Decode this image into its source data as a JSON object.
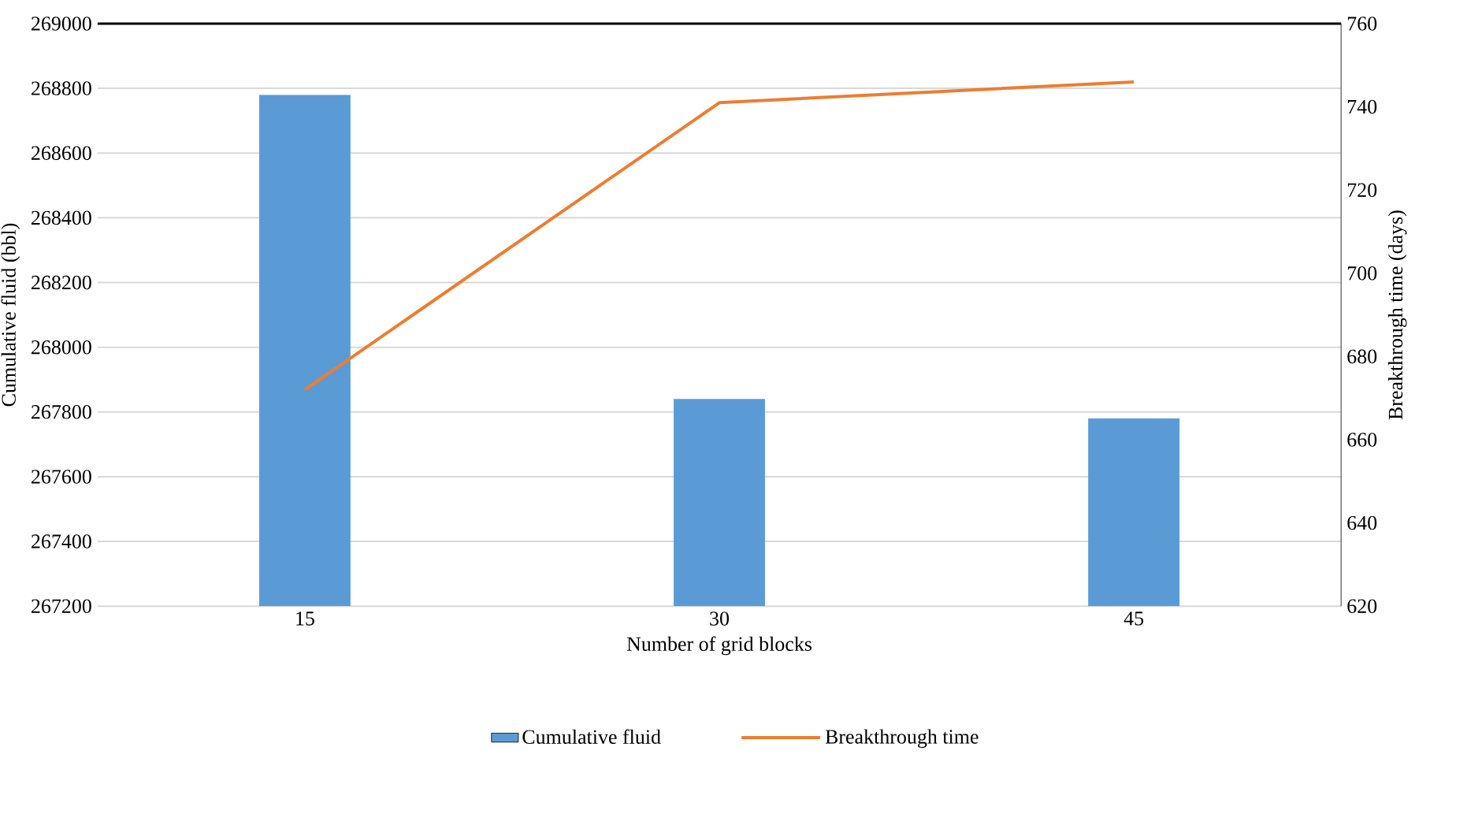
{
  "chart_data": {
    "type": "bar",
    "xlabel": "Number of grid blocks",
    "ylabel": "Cumulative fluid (bbl)",
    "y2label": "Breakthrough time (days)",
    "categories": [
      "15",
      "30",
      "45"
    ],
    "series": [
      {
        "name": "Cumulative fluid",
        "color": "#5b9bd5",
        "values": [
          268780,
          267840,
          267780
        ]
      },
      {
        "name": "Breakthrough time",
        "color": "#ed7d31",
        "type": "line",
        "axis": "y2",
        "values": [
          672,
          741,
          746
        ]
      }
    ],
    "ylim": [
      267200,
      269000
    ],
    "yticks": [
      267200,
      267400,
      267600,
      267800,
      268000,
      268200,
      268400,
      268600,
      268800,
      269000
    ],
    "y2lim": [
      620,
      760
    ],
    "y2ticks": [
      620,
      640,
      660,
      680,
      700,
      720,
      740,
      760
    ],
    "grid": "y",
    "legend": "bottom",
    "marker": "none",
    "line_style": "solid"
  }
}
